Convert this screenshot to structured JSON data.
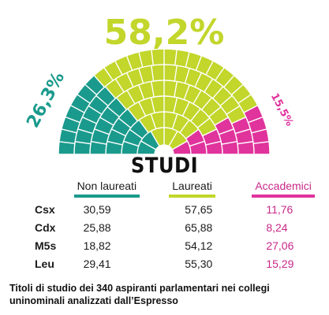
{
  "chart_data": {
    "type": "hemicycle",
    "title": "STUDI",
    "parts": [
      {
        "name": "Non laureati",
        "label": "26,3%",
        "value": 26.3,
        "color": "#1a9a8c"
      },
      {
        "name": "Laureati",
        "label": "58,2%",
        "value": 58.2,
        "color": "#c2d62b"
      },
      {
        "name": "Accademici",
        "label": "15,5%",
        "value": 15.5,
        "color": "#e0339c"
      }
    ],
    "table": {
      "columns": [
        "Non laureati",
        "Laureati",
        "Accademici"
      ],
      "rows": [
        {
          "label": "Csx",
          "values": [
            "30,59",
            "57,65",
            "11,76"
          ]
        },
        {
          "label": "Cdx",
          "values": [
            "25,88",
            "65,88",
            "8,24"
          ]
        },
        {
          "label": "M5s",
          "values": [
            "18,82",
            "54,12",
            "27,06"
          ]
        },
        {
          "label": "Leu",
          "values": [
            "29,41",
            "55,30",
            "15,29"
          ]
        }
      ]
    }
  },
  "caption": "Titoli di studio dei 340 aspiranti parlamentari nei collegi uninominali analizzati dall’Espresso"
}
